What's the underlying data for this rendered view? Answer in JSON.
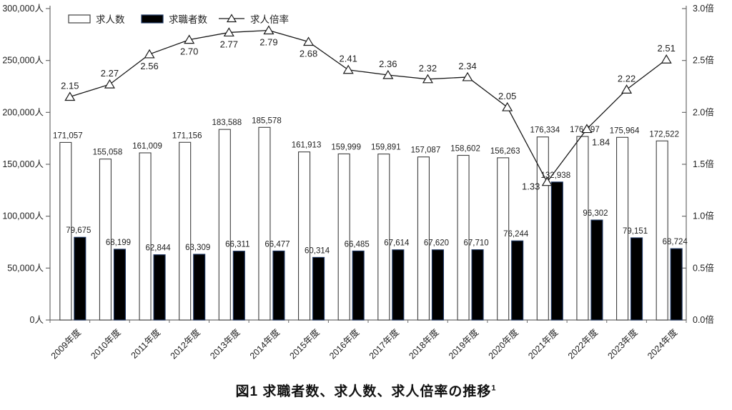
{
  "figure_title": {
    "text": "図1 求職者数、求人数、求人倍率の推移",
    "footnote_marker": "1"
  },
  "colors": {
    "background": "#ffffff",
    "axis": "#6b6b6b",
    "bar_openings_fill": "#ffffff",
    "bar_openings_stroke": "#3f3f3f",
    "bar_seekers_fill": "#000000",
    "bar_seekers_stroke": "#1f3864",
    "line": "#1a1a1a",
    "marker_fill": "#ffffff",
    "text": "#1f1f1f"
  },
  "chart_data": {
    "type": "combo-bar-line",
    "title": "",
    "categories": [
      "2009年度",
      "2010年度",
      "2011年度",
      "2012年度",
      "2013年度",
      "2014年度",
      "2015年度",
      "2016年度",
      "2017年度",
      "2018年度",
      "2019年度",
      "2020年度",
      "2021年度",
      "2022年度",
      "2023年度",
      "2024年度"
    ],
    "series": [
      {
        "name": "求人数",
        "type": "bar",
        "axis": "left",
        "values": [
          171057,
          155058,
          161009,
          171156,
          183588,
          185578,
          161913,
          159999,
          159891,
          157087,
          158602,
          156263,
          176334,
          176797,
          175964,
          172522
        ]
      },
      {
        "name": "求職者数",
        "type": "bar",
        "axis": "left",
        "values": [
          79675,
          68199,
          62844,
          63309,
          66311,
          66477,
          60314,
          66485,
          67614,
          67620,
          67710,
          76244,
          132938,
          96302,
          79151,
          68724
        ]
      },
      {
        "name": "求人倍率",
        "type": "line",
        "axis": "right",
        "values": [
          2.15,
          2.27,
          2.56,
          2.7,
          2.77,
          2.79,
          2.68,
          2.41,
          2.36,
          2.32,
          2.34,
          2.05,
          1.33,
          1.84,
          2.22,
          2.51
        ]
      }
    ],
    "left_axis": {
      "min": 0,
      "max": 300000,
      "tick_step": 50000,
      "unit": "人",
      "tick_labels": [
        "0人",
        "50,000人",
        "100,000人",
        "150,000人",
        "200,000人",
        "250,000人",
        "300,000人"
      ]
    },
    "right_axis": {
      "min": 0,
      "max": 3,
      "tick_step": 0.5,
      "unit": "倍",
      "tick_labels": [
        "0.0倍",
        "0.5倍",
        "1.0倍",
        "1.5倍",
        "2.0倍",
        "2.5倍",
        "3.0倍"
      ]
    },
    "legend": {
      "position": "top-left",
      "items": [
        "求人数",
        "求職者数",
        "求人倍率"
      ]
    },
    "grid": false,
    "data_labels": true
  }
}
